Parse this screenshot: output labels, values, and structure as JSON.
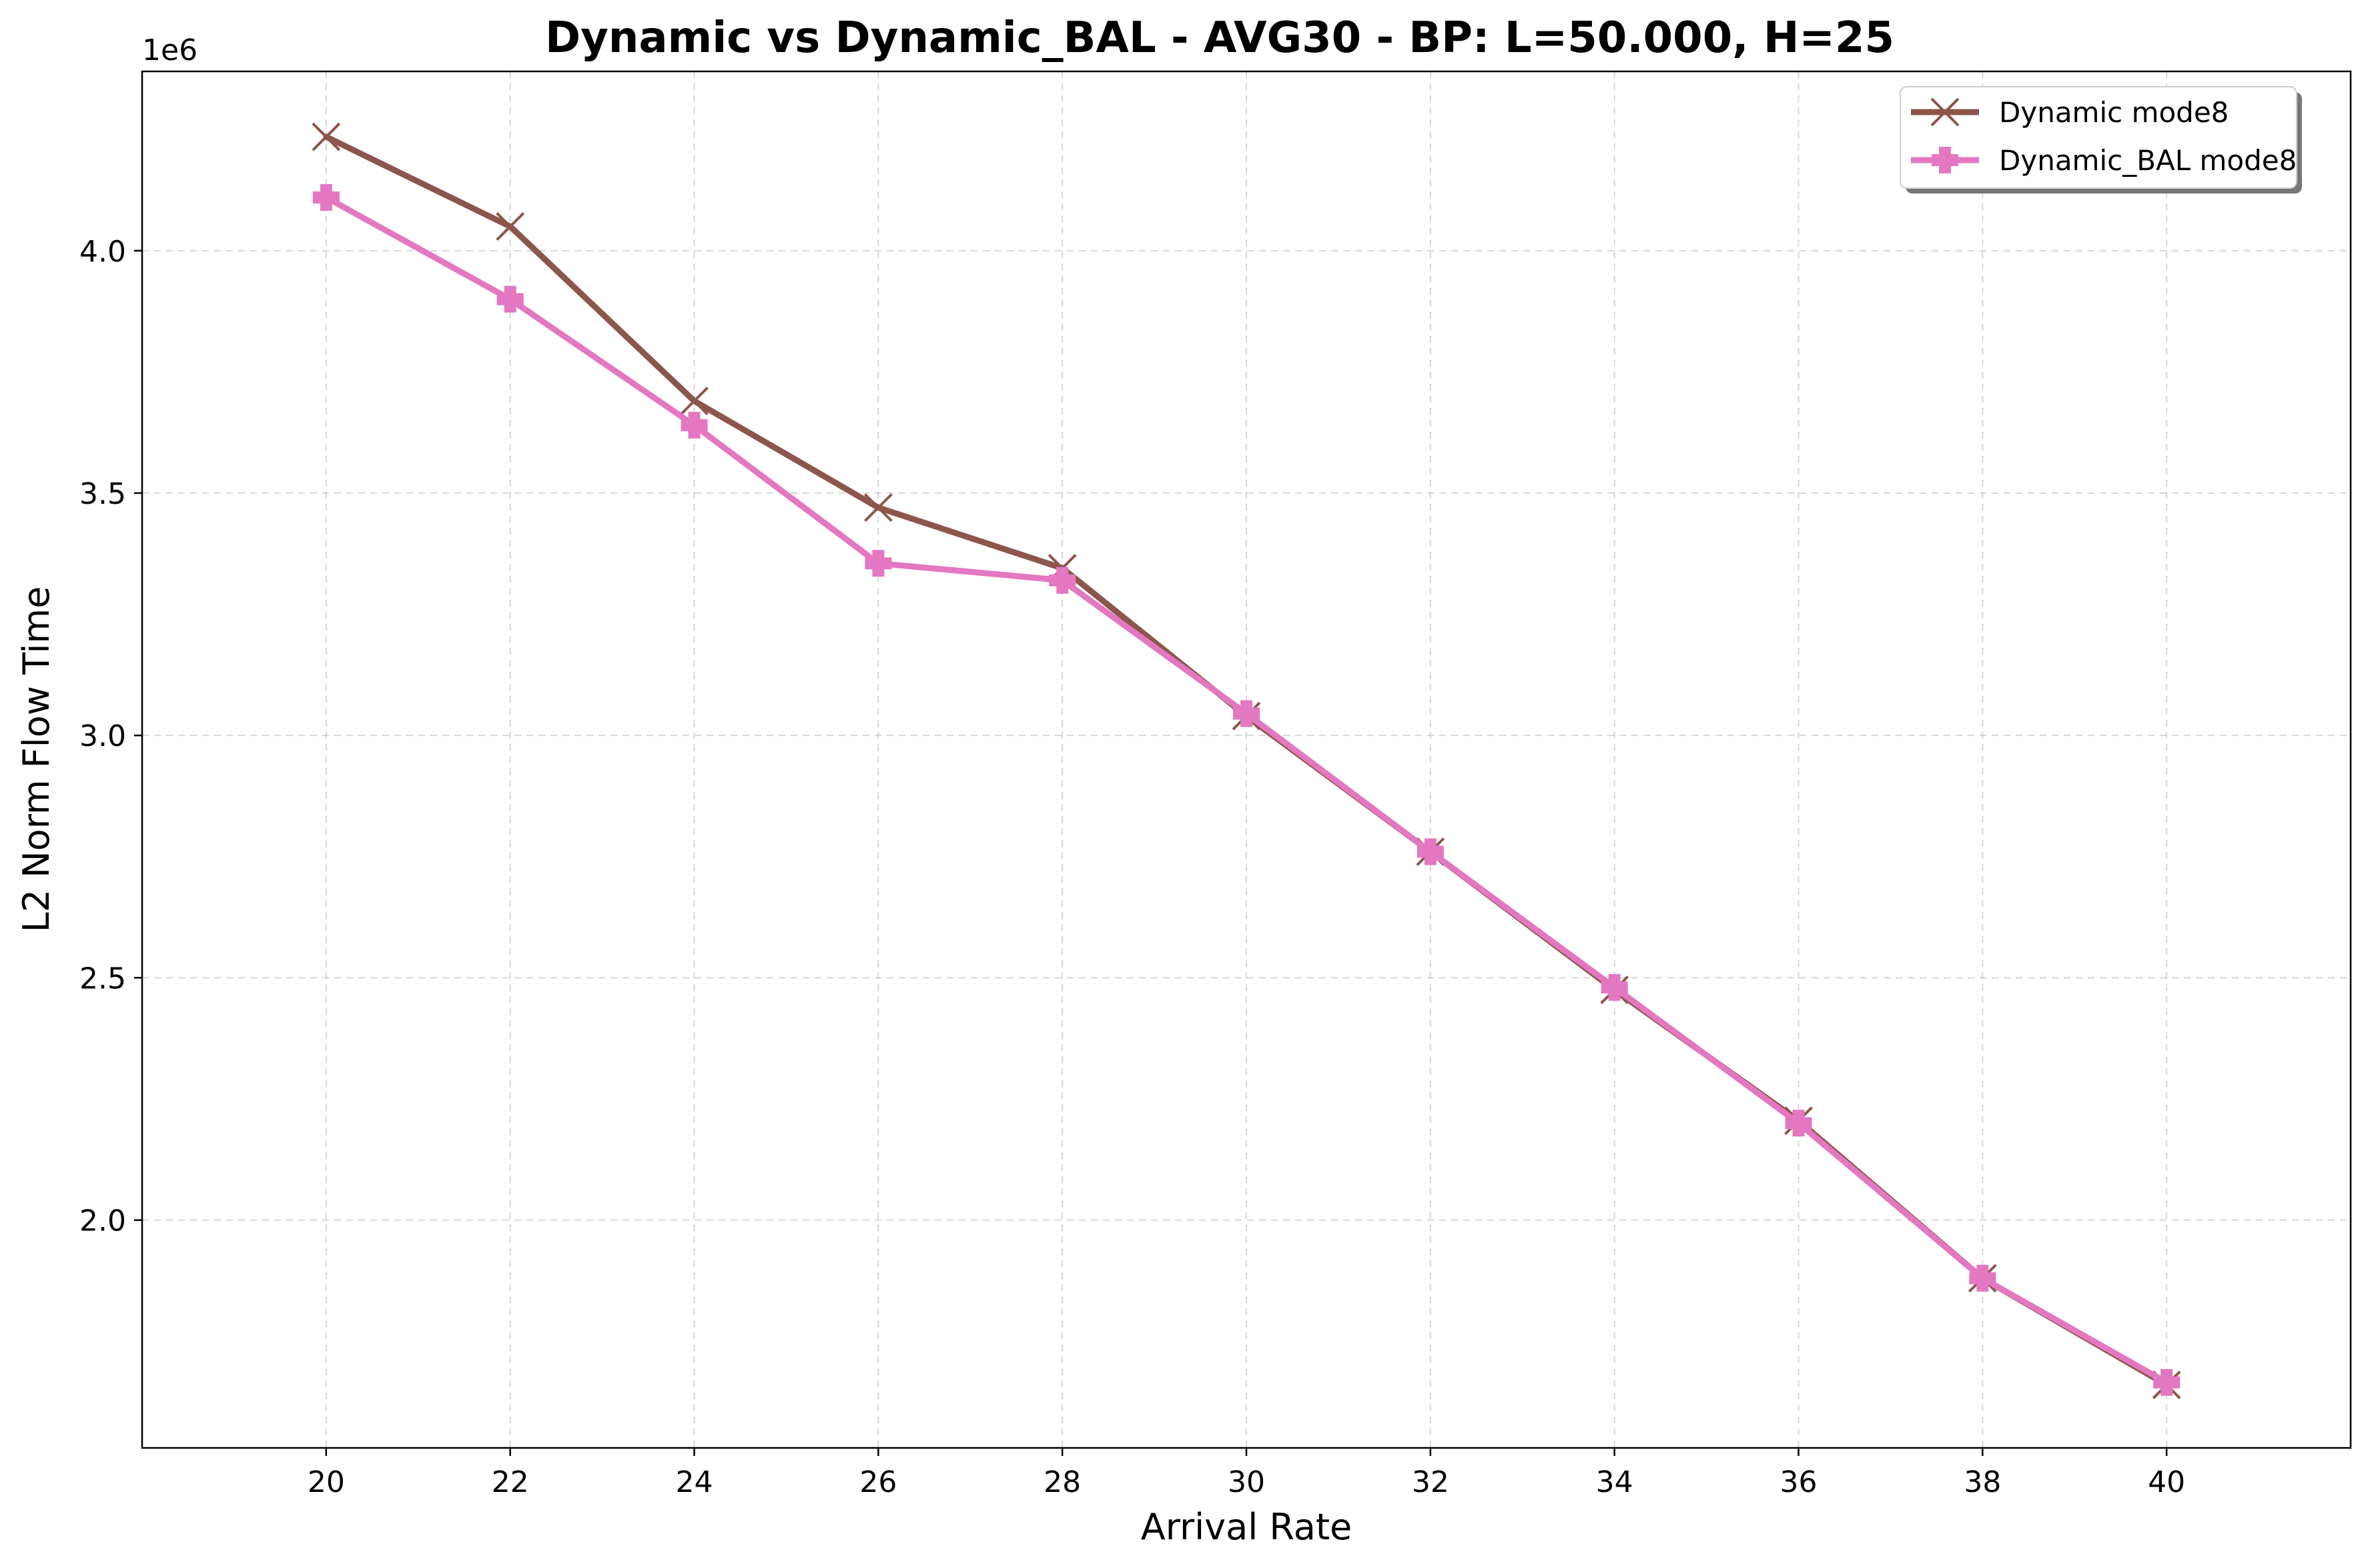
{
  "chart_data": {
    "type": "line",
    "title": "Dynamic vs Dynamic_BAL - AVG30 - BP: L=50.000, H=25",
    "xlabel": "Arrival Rate",
    "ylabel": "L2 Norm Flow Time",
    "y_offset_label": "1e6",
    "xlim": [
      18,
      42
    ],
    "ylim": [
      1.53,
      4.37
    ],
    "x_ticks": [
      20,
      22,
      24,
      26,
      28,
      30,
      32,
      34,
      36,
      38,
      40
    ],
    "x_tick_labels": [
      "20",
      "22",
      "24",
      "26",
      "28",
      "30",
      "32",
      "34",
      "36",
      "38",
      "40"
    ],
    "y_ticks": [
      2.0,
      2.5,
      3.0,
      3.5,
      4.0
    ],
    "y_tick_labels": [
      "2.0",
      "2.5",
      "3.0",
      "3.5",
      "4.0"
    ],
    "grid": true,
    "legend_position": "top-right",
    "x": [
      20,
      22,
      24,
      26,
      28,
      30,
      32,
      34,
      36,
      38,
      40
    ],
    "series": [
      {
        "name": "Dynamic mode8",
        "color": "#8c564b",
        "marker": "x",
        "values": [
          4.235,
          4.05,
          3.69,
          3.47,
          3.345,
          3.04,
          2.76,
          2.475,
          2.205,
          1.88,
          1.66
        ]
      },
      {
        "name": "Dynamic_BAL mode8",
        "color": "#e377c2",
        "marker": "plus-filled",
        "values": [
          4.11,
          3.9,
          3.64,
          3.355,
          3.32,
          3.045,
          2.76,
          2.48,
          2.2,
          1.88,
          1.665
        ]
      }
    ]
  }
}
